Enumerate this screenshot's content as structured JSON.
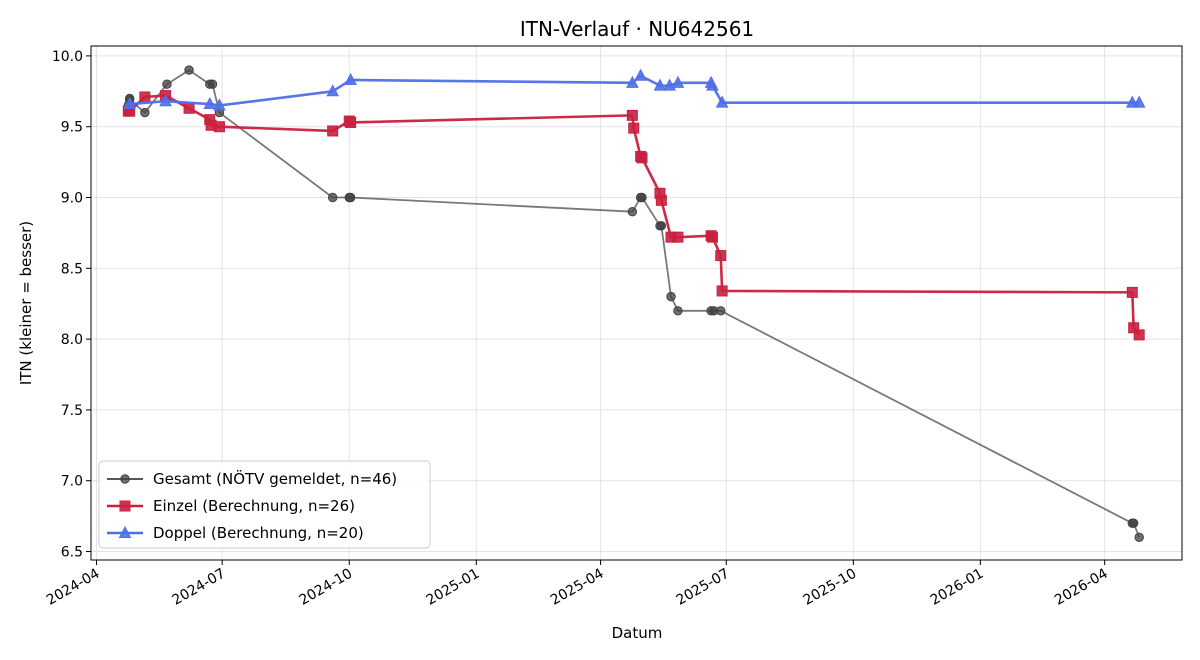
{
  "chart_data": {
    "type": "line",
    "title": "ITN-Verlauf · NU642561",
    "xlabel": "Datum",
    "ylabel": "ITN  (kleiner = besser)",
    "xlim": [
      "2024-03-28",
      "2026-05-27"
    ],
    "ylim": [
      6.44,
      10.07
    ],
    "y_ticks": [
      6.5,
      7.0,
      7.5,
      8.0,
      8.5,
      9.0,
      9.5,
      10.0
    ],
    "y_tick_labels": [
      "6.5",
      "7.0",
      "7.5",
      "8.0",
      "8.5",
      "9.0",
      "9.5",
      "10.0"
    ],
    "x_ticks": [
      "2024-04-01",
      "2024-07-01",
      "2024-10-01",
      "2025-01-01",
      "2025-04-01",
      "2025-07-01",
      "2025-10-01",
      "2026-01-01",
      "2026-04-01"
    ],
    "x_tick_labels": [
      "2024-04",
      "2024-07",
      "2024-10",
      "2025-01",
      "2025-04",
      "2025-07",
      "2025-10",
      "2026-01",
      "2026-04"
    ],
    "grid": true,
    "legend_position": "bottom-left",
    "series": [
      {
        "name": "Gesamt (NÖTV gemeldet, n=46)",
        "color": "#404040",
        "marker": "circle",
        "points": [
          [
            "2024-04-24",
            9.65
          ],
          [
            "2024-04-25",
            9.7
          ],
          [
            "2024-04-25",
            9.69
          ],
          [
            "2024-05-06",
            9.6
          ],
          [
            "2024-05-22",
            9.8
          ],
          [
            "2024-06-07",
            9.9
          ],
          [
            "2024-06-22",
            9.8
          ],
          [
            "2024-06-24",
            9.8
          ],
          [
            "2024-06-29",
            9.6
          ],
          [
            "2024-09-19",
            9.0
          ],
          [
            "2024-10-01",
            9.0
          ],
          [
            "2024-10-02",
            9.0
          ],
          [
            "2025-04-24",
            8.9
          ],
          [
            "2025-04-30",
            9.0
          ],
          [
            "2025-05-01",
            9.0
          ],
          [
            "2025-05-14",
            8.8
          ],
          [
            "2025-05-15",
            8.8
          ],
          [
            "2025-05-22",
            8.3
          ],
          [
            "2025-05-27",
            8.2
          ],
          [
            "2025-06-20",
            8.2
          ],
          [
            "2025-06-22",
            8.2
          ],
          [
            "2025-06-27",
            8.2
          ],
          [
            "2026-04-21",
            6.7
          ],
          [
            "2026-04-22",
            6.7
          ],
          [
            "2026-04-26",
            6.6
          ]
        ]
      },
      {
        "name": "Einzel (Berechnung, n=26)",
        "color": "#c8203e",
        "marker": "square",
        "points": [
          [
            "2024-04-24",
            9.61
          ],
          [
            "2024-04-25",
            9.61
          ],
          [
            "2024-05-06",
            9.71
          ],
          [
            "2024-05-21",
            9.72
          ],
          [
            "2024-06-07",
            9.63
          ],
          [
            "2024-06-22",
            9.55
          ],
          [
            "2024-06-23",
            9.51
          ],
          [
            "2024-06-29",
            9.5
          ],
          [
            "2024-09-19",
            9.47
          ],
          [
            "2024-10-01",
            9.54
          ],
          [
            "2024-10-02",
            9.53
          ],
          [
            "2025-04-24",
            9.58
          ],
          [
            "2025-04-25",
            9.49
          ],
          [
            "2025-04-30",
            9.29
          ],
          [
            "2025-05-01",
            9.28
          ],
          [
            "2025-05-14",
            9.03
          ],
          [
            "2025-05-15",
            8.98
          ],
          [
            "2025-05-22",
            8.72
          ],
          [
            "2025-05-27",
            8.72
          ],
          [
            "2025-06-20",
            8.73
          ],
          [
            "2025-06-21",
            8.72
          ],
          [
            "2025-06-27",
            8.59
          ],
          [
            "2025-06-28",
            8.34
          ],
          [
            "2026-04-21",
            8.33
          ],
          [
            "2026-04-22",
            8.08
          ],
          [
            "2026-04-26",
            8.03
          ]
        ]
      },
      {
        "name": "Doppel (Berechnung, n=20)",
        "color": "#4f6ee8",
        "marker": "triangle",
        "points": [
          [
            "2024-04-25",
            9.66
          ],
          [
            "2024-05-21",
            9.68
          ],
          [
            "2024-06-22",
            9.66
          ],
          [
            "2024-06-29",
            9.65
          ],
          [
            "2024-09-19",
            9.75
          ],
          [
            "2024-10-02",
            9.83
          ],
          [
            "2025-04-24",
            9.81
          ],
          [
            "2025-04-30",
            9.86
          ],
          [
            "2025-05-14",
            9.79
          ],
          [
            "2025-05-21",
            9.79
          ],
          [
            "2025-05-27",
            9.81
          ],
          [
            "2025-06-20",
            9.81
          ],
          [
            "2025-06-21",
            9.79
          ],
          [
            "2025-06-28",
            9.67
          ],
          [
            "2026-04-21",
            9.67
          ],
          [
            "2026-04-26",
            9.67
          ]
        ]
      }
    ]
  }
}
